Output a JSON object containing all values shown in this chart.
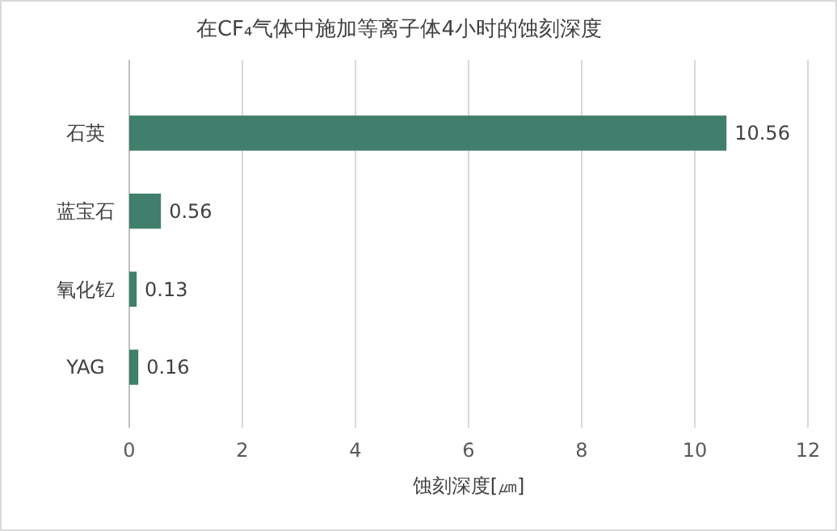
{
  "chart_data": {
    "type": "bar",
    "orientation": "horizontal",
    "title": "在CF₄气体中施加等离子体4小时的蚀刻深度",
    "xlabel": "蚀刻深度[㎛]",
    "categories": [
      "石英",
      "蓝宝石",
      "氧化钇",
      "YAG"
    ],
    "values": [
      10.56,
      0.56,
      0.13,
      0.16
    ],
    "color": "#3f7f6c",
    "xlim": [
      0,
      12
    ],
    "xticks": [
      0,
      2,
      4,
      6,
      8,
      10,
      12
    ],
    "grid": "x",
    "data_labels": true
  }
}
